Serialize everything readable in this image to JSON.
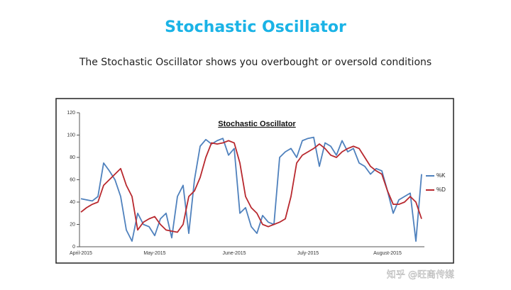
{
  "header": {
    "title": "Stochastic Oscillator",
    "subtitle": "The Stochastic Oscillator shows you overbought or oversold conditions"
  },
  "watermark": "知乎 @旺商传媒",
  "chart_data": {
    "type": "line",
    "title": "Stochastic Oscillator",
    "categories": [
      "April-2015",
      null,
      null,
      null,
      null,
      null,
      null,
      null,
      null,
      null,
      null,
      null,
      null,
      "May-2015",
      null,
      null,
      null,
      null,
      null,
      null,
      null,
      null,
      null,
      null,
      null,
      null,
      null,
      "June-2015",
      null,
      null,
      null,
      null,
      null,
      null,
      null,
      null,
      null,
      null,
      null,
      null,
      "July-2015",
      null,
      null,
      null,
      null,
      null,
      null,
      null,
      null,
      null,
      null,
      null,
      null,
      null,
      "August-2015",
      null,
      null,
      null,
      null,
      null,
      null
    ],
    "series": [
      {
        "name": "%K",
        "color": "#4f81bd",
        "values": [
          43,
          42,
          41,
          45,
          75,
          68,
          60,
          45,
          15,
          5,
          30,
          20,
          18,
          10,
          25,
          30,
          8,
          45,
          55,
          12,
          60,
          90,
          96,
          92,
          95,
          97,
          82,
          88,
          30,
          35,
          18,
          12,
          28,
          22,
          20,
          80,
          85,
          88,
          80,
          95,
          97,
          98,
          72,
          93,
          90,
          82,
          95,
          85,
          88,
          75,
          72,
          65,
          70,
          68,
          50,
          30,
          42,
          45,
          48,
          5,
          65
        ]
      },
      {
        "name": "%D",
        "color": "#b8282e",
        "values": [
          31,
          35,
          38,
          40,
          55,
          60,
          65,
          70,
          55,
          45,
          15,
          22,
          25,
          27,
          20,
          15,
          14,
          13,
          20,
          45,
          50,
          62,
          80,
          93,
          92,
          93,
          95,
          93,
          75,
          45,
          35,
          30,
          20,
          18,
          20,
          22,
          25,
          45,
          75,
          82,
          85,
          88,
          92,
          88,
          82,
          80,
          85,
          88,
          90,
          88,
          80,
          72,
          68,
          65,
          50,
          38,
          38,
          40,
          45,
          40,
          25
        ]
      }
    ],
    "ylim": [
      0,
      120
    ],
    "yticks": [
      0,
      20,
      40,
      60,
      80,
      100,
      120
    ],
    "legend": "right"
  }
}
